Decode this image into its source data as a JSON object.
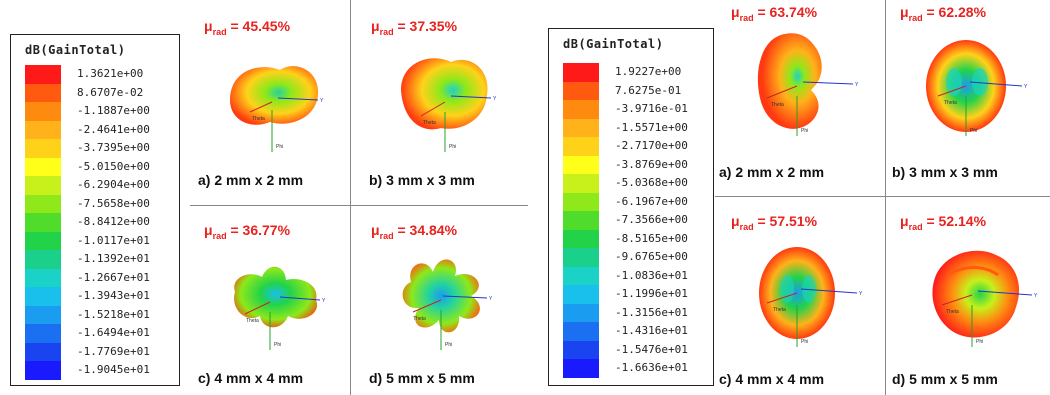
{
  "left_figure": {
    "legend_title": "dB(GainTotal)",
    "legend_values": [
      "1.3621e+00",
      "8.6707e-02",
      "-1.1887e+00",
      "-2.4641e+00",
      "-3.7395e+00",
      "-5.0150e+00",
      "-6.2904e+00",
      "-7.5658e+00",
      "-8.8412e+00",
      "-1.0117e+01",
      "-1.1392e+01",
      "-1.2667e+01",
      "-1.3943e+01",
      "-1.5218e+01",
      "-1.6494e+01",
      "-1.7769e+01",
      "-1.9045e+01"
    ],
    "cells": [
      {
        "mu_prefix": "μ",
        "mu_sub": "rad",
        "mu_value": "= 45.45%",
        "caption": "a) 2 mm x 2 mm"
      },
      {
        "mu_prefix": "μ",
        "mu_sub": "rad",
        "mu_value": "= 37.35%",
        "caption": "b) 3 mm x 3 mm"
      },
      {
        "mu_prefix": "μ",
        "mu_sub": "rad",
        "mu_value": "= 36.77%",
        "caption": "c) 4 mm x 4 mm"
      },
      {
        "mu_prefix": "μ",
        "mu_sub": "rad",
        "mu_value": "= 34.84%",
        "caption": "d) 5 mm x 5 mm"
      }
    ]
  },
  "right_figure": {
    "legend_title": "dB(GainTotal)",
    "legend_values": [
      "1.9227e+00",
      "7.6275e-01",
      "-3.9716e-01",
      "-1.5571e+00",
      "-2.7170e+00",
      "-3.8769e+00",
      "-5.0368e+00",
      "-6.1967e+00",
      "-7.3566e+00",
      "-8.5165e+00",
      "-9.6765e+00",
      "-1.0836e+01",
      "-1.1996e+01",
      "-1.3156e+01",
      "-1.4316e+01",
      "-1.5476e+01",
      "-1.6636e+01"
    ],
    "cells": [
      {
        "mu_prefix": "μ",
        "mu_sub": "rad",
        "mu_value": "= 63.74%",
        "caption": "a) 2 mm x 2 mm"
      },
      {
        "mu_prefix": "μ",
        "mu_sub": "rad",
        "mu_value": "= 62.28%",
        "caption": "b) 3 mm x 3 mm"
      },
      {
        "mu_prefix": "μ",
        "mu_sub": "rad",
        "mu_value": "= 57.51%",
        "caption": "c) 4 mm x 4 mm"
      },
      {
        "mu_prefix": "μ",
        "mu_sub": "rad",
        "mu_value": "= 52.14%",
        "caption": "d) 5 mm x 5 mm"
      }
    ]
  },
  "axis_labels": {
    "theta": "Theta",
    "phi": "Phi",
    "y": "Y"
  },
  "colormap": [
    "#ff1a1a",
    "#ff5a10",
    "#ff8a10",
    "#ffb21a",
    "#ffd21a",
    "#ffff1a",
    "#c8f01a",
    "#8ee81a",
    "#4fdc2a",
    "#22d34a",
    "#1ad08a",
    "#1ad3c6",
    "#1ac0ec",
    "#1a9cf0",
    "#1a70f0",
    "#1a44f0",
    "#1a1aff"
  ]
}
